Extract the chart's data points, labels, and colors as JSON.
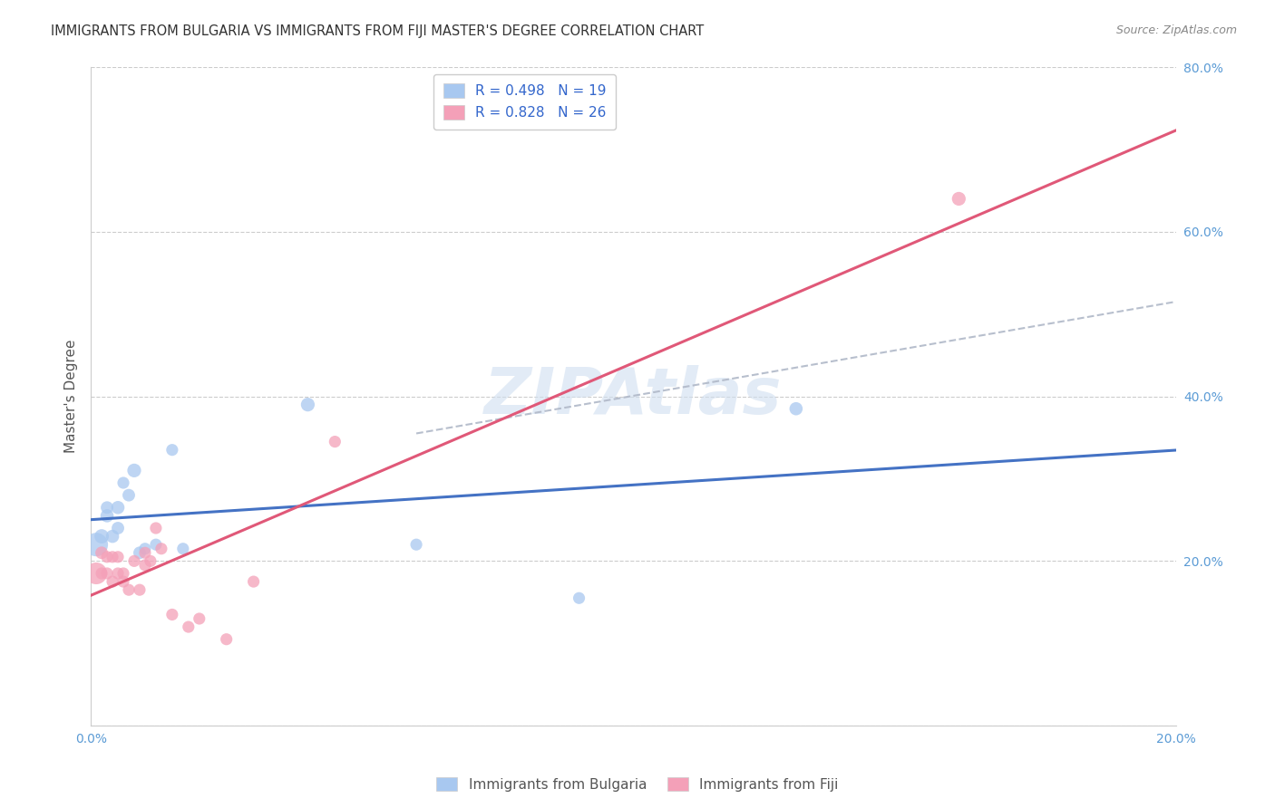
{
  "title": "IMMIGRANTS FROM BULGARIA VS IMMIGRANTS FROM FIJI MASTER'S DEGREE CORRELATION CHART",
  "source": "Source: ZipAtlas.com",
  "ylabel": "Master's Degree",
  "xlim": [
    0.0,
    0.2
  ],
  "ylim": [
    0.0,
    0.8
  ],
  "xtick_positions": [
    0.0,
    0.05,
    0.1,
    0.15,
    0.2
  ],
  "xticklabels": [
    "0.0%",
    "",
    "",
    "",
    "20.0%"
  ],
  "ytick_positions": [
    0.0,
    0.2,
    0.4,
    0.6,
    0.8
  ],
  "yticklabels": [
    "",
    "20.0%",
    "40.0%",
    "60.0%",
    "80.0%"
  ],
  "grid_color": "#cccccc",
  "background_color": "#ffffff",
  "legend_R_bulgaria": "R = 0.498",
  "legend_N_bulgaria": "N = 19",
  "legend_R_fiji": "R = 0.828",
  "legend_N_fiji": "N = 26",
  "legend_label_bulgaria": "Immigrants from Bulgaria",
  "legend_label_fiji": "Immigrants from Fiji",
  "color_bulgaria": "#a8c8f0",
  "color_fiji": "#f4a0b8",
  "line_color_bulgaria": "#4472c4",
  "line_color_fiji": "#e05878",
  "line_color_ref": "#b0b8c8",
  "tick_color": "#5b9bd5",
  "ylabel_color": "#555555",
  "title_color": "#333333",
  "source_color": "#888888",
  "watermark_color": "#d0dff0",
  "bulgaria_x": [
    0.001,
    0.002,
    0.003,
    0.003,
    0.004,
    0.005,
    0.005,
    0.006,
    0.007,
    0.008,
    0.009,
    0.01,
    0.012,
    0.015,
    0.017,
    0.04,
    0.06,
    0.09,
    0.13
  ],
  "bulgaria_y": [
    0.22,
    0.23,
    0.255,
    0.265,
    0.23,
    0.24,
    0.265,
    0.295,
    0.28,
    0.31,
    0.21,
    0.215,
    0.22,
    0.335,
    0.215,
    0.39,
    0.22,
    0.155,
    0.385
  ],
  "bulgaria_sizes": [
    350,
    130,
    110,
    100,
    110,
    100,
    110,
    90,
    100,
    120,
    100,
    90,
    90,
    90,
    90,
    120,
    90,
    90,
    110
  ],
  "fiji_x": [
    0.001,
    0.002,
    0.002,
    0.003,
    0.003,
    0.004,
    0.004,
    0.005,
    0.005,
    0.006,
    0.006,
    0.007,
    0.008,
    0.009,
    0.01,
    0.01,
    0.011,
    0.012,
    0.013,
    0.015,
    0.018,
    0.02,
    0.025,
    0.03,
    0.045,
    0.16
  ],
  "fiji_y": [
    0.185,
    0.21,
    0.185,
    0.205,
    0.185,
    0.205,
    0.175,
    0.185,
    0.205,
    0.185,
    0.175,
    0.165,
    0.2,
    0.165,
    0.21,
    0.195,
    0.2,
    0.24,
    0.215,
    0.135,
    0.12,
    0.13,
    0.105,
    0.175,
    0.345,
    0.64
  ],
  "fiji_sizes": [
    300,
    100,
    90,
    90,
    90,
    90,
    90,
    90,
    90,
    90,
    90,
    90,
    90,
    90,
    90,
    90,
    90,
    90,
    90,
    90,
    90,
    90,
    90,
    90,
    90,
    120
  ],
  "title_fontsize": 10.5,
  "axis_label_fontsize": 11,
  "tick_fontsize": 10,
  "legend_fontsize": 11,
  "source_fontsize": 9
}
